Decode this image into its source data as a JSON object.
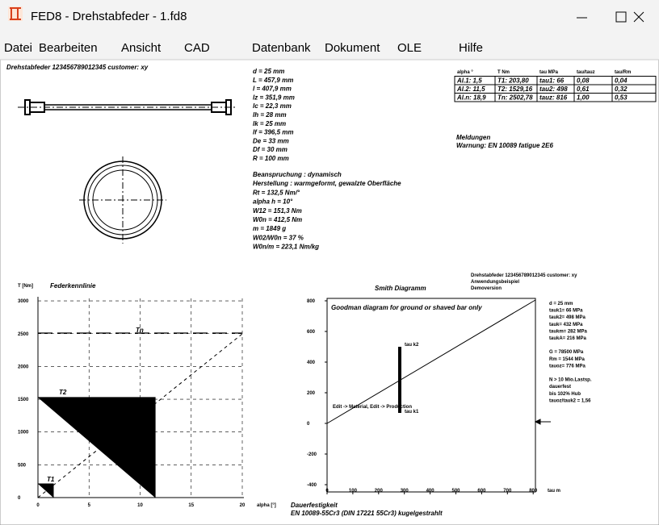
{
  "window": {
    "title": "FED8 - Drehstabfeder  -  1.fd8"
  },
  "menu": [
    "Datei",
    "Bearbeiten",
    "Ansicht",
    "CAD",
    "Datenbank",
    "Dokument",
    "OLE",
    "Hilfe"
  ],
  "drawing": {
    "header": "Drehstabfeder  123456789012345  customer: xy"
  },
  "specs": [
    "d = 25 mm",
    "L = 457,9 mm",
    "l = 407,9 mm",
    "lz = 351,9 mm",
    "lc = 22,3 mm",
    "lh = 28 mm",
    "lk = 25 mm",
    "lf = 396,5 mm",
    "De = 33 mm",
    "Df = 30 mm",
    "R = 100 mm"
  ],
  "stress": [
    "Beanspruchung : dynamisch",
    "Herstellung : warmgeformt, gewalzte Oberfläche",
    "Rt = 132,5 Nm/°",
    "alpha h = 10°",
    "W12 = 151,3 Nm",
    "W0n = 412,5 Nm",
    "m = 1849 g",
    "W02/W0n = 37 %",
    "W0n/m = 223,1 Nm/kg"
  ],
  "table": {
    "header": [
      "alpha °",
      "T Nm",
      "tau MPa",
      "tau/tauz",
      "tau/Rm"
    ],
    "rows": [
      [
        "Al.1:  1,5",
        "T1:  203,80",
        "tau1:  66",
        "0,08",
        "0,04"
      ],
      [
        "Al.2:  11,5",
        "T2: 1529,16",
        "tau2:  498",
        "0,61",
        "0,32"
      ],
      [
        "Al.n:  18,9",
        "Tn: 2502,78",
        "tauz:  816",
        "1,00",
        "0,53"
      ]
    ]
  },
  "messages": {
    "title": "Meldungen",
    "warning": "Warnung: EN 10089 fatigue 2E6"
  },
  "spring_chart": {
    "y_label": "T [Nm]",
    "title": "Federkennlinie",
    "x_label": "alpha [°]",
    "yticks": [
      0,
      500,
      1000,
      1500,
      2000,
      2500,
      3000
    ],
    "xticks": [
      0,
      5,
      10,
      15,
      20
    ],
    "labels": [
      "T1",
      "T2",
      "Tn"
    ]
  },
  "smith": {
    "title": "Smith Diagramm",
    "note": "Goodman diagram for ground or shaved bar only",
    "upper": "tau k2",
    "lower": "tau k1",
    "edit": "Edit -> Material, Edit -> Production",
    "x_label": "tau m",
    "yticks": [
      800,
      600,
      400,
      200,
      0,
      -200,
      -400
    ],
    "xticks": [
      0,
      100,
      200,
      300,
      400,
      500,
      600,
      700,
      800
    ],
    "info": [
      "Drehstabfeder  123456789012345  customer: xy",
      "Anwendungsbeispiel",
      "Demoversion"
    ],
    "values": [
      "d  = 25 mm",
      "tauk1=   66 MPa",
      "tauk2=  498 MPa",
      "tauk=  432 MPa",
      "taukm=   282 MPa",
      "taukA=  216 MPa",
      "",
      "G =  78500 MPa",
      "Rm =  1544 MPa",
      "tauoz=  776 MPa",
      "",
      "N > 10 Mio.Lastsp.",
      "dauerfest",
      "bis 102% Hub",
      "tauoz/tauk2 = 1,56"
    ]
  },
  "footer": {
    "title": "Dauerfestigkeit",
    "material": "EN 10089-55Cr3 (DIN 17221 55Cr3) kugelgestrahlt"
  }
}
